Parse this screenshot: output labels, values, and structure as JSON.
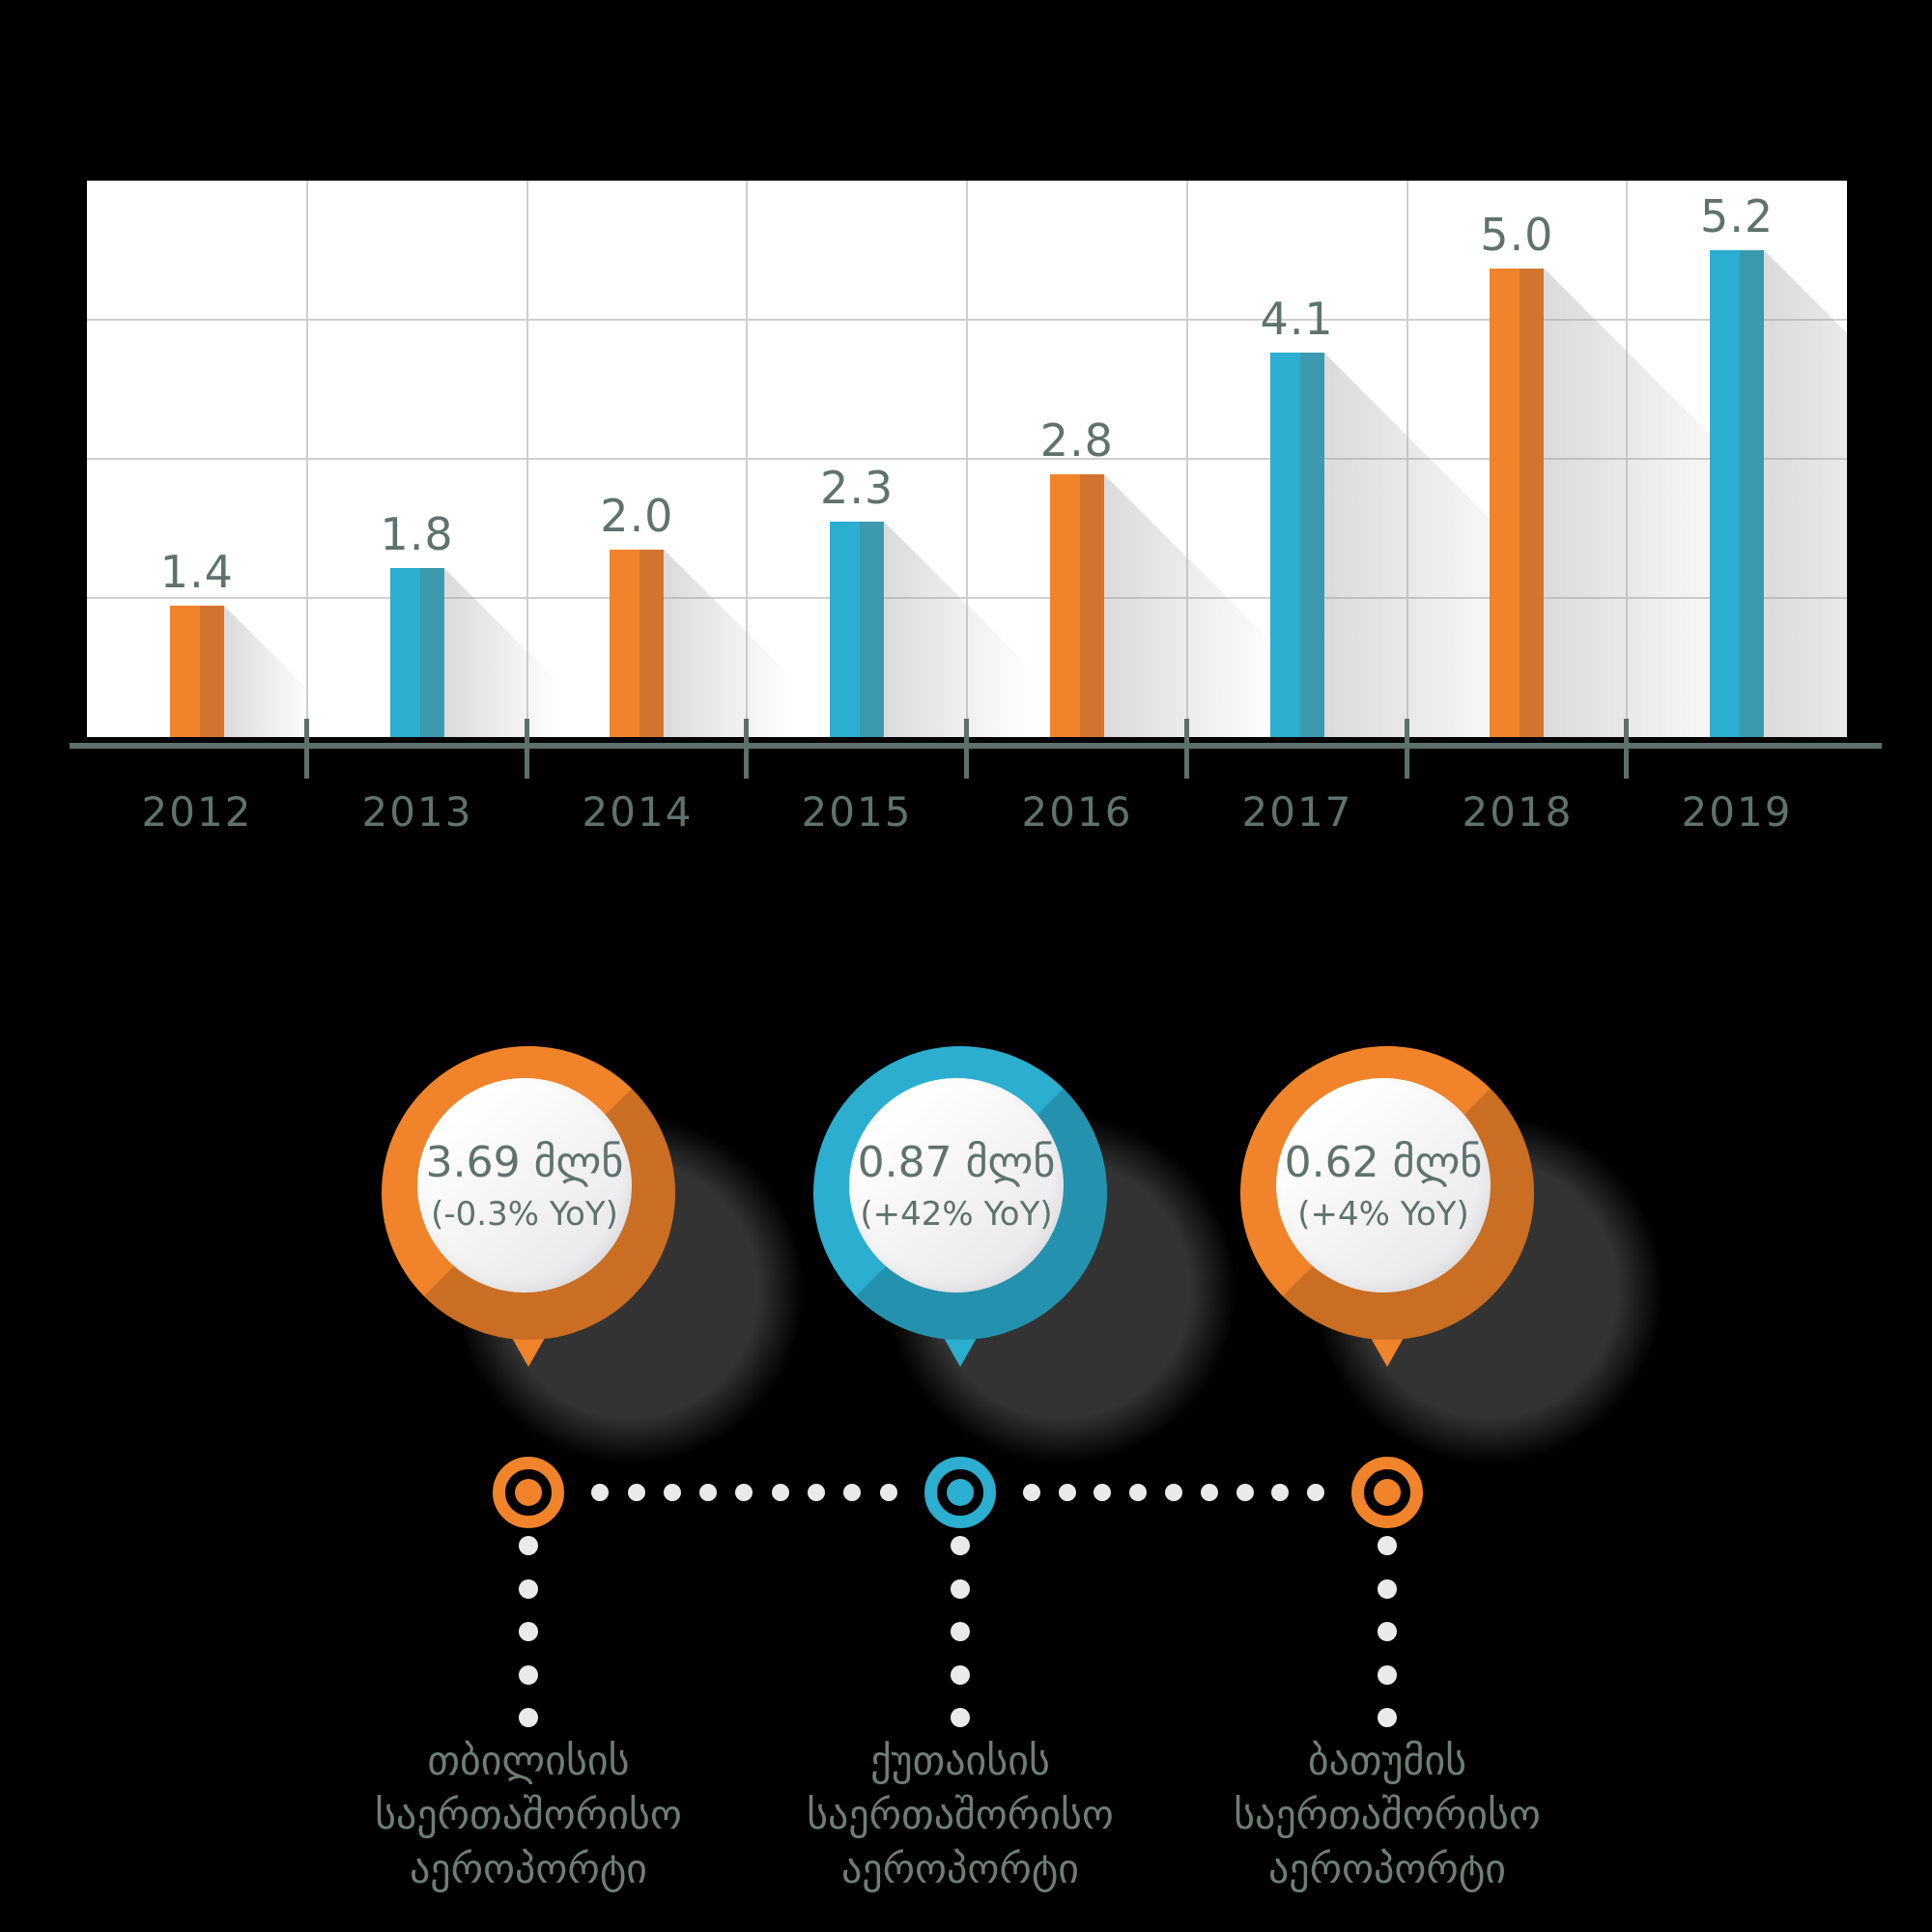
{
  "background_color": "#000000",
  "chart_data": {
    "type": "bar",
    "title": "",
    "categories": [
      "2012",
      "2013",
      "2014",
      "2015",
      "2016",
      "2017",
      "2018",
      "2019"
    ],
    "values": [
      1.4,
      1.8,
      2.0,
      2.3,
      2.8,
      4.1,
      5.0,
      5.2
    ],
    "value_labels": [
      "1.4",
      "1.8",
      "2.0",
      "2.3",
      "2.8",
      "4.1",
      "5.0",
      "5.2"
    ],
    "bar_colors": [
      "orange",
      "blue",
      "orange",
      "blue",
      "orange",
      "blue",
      "orange",
      "blue"
    ],
    "xlabel": "",
    "ylabel": "",
    "ylim": [
      0,
      5.9
    ],
    "grid": true,
    "y_axis_labels_visible": false,
    "legend_position": "none"
  },
  "pins": [
    {
      "value": "3.69 მლნ",
      "yoy": "(-0.3% YoY)",
      "color": "orange"
    },
    {
      "value": "0.87 მლნ",
      "yoy": "(+42% YoY)",
      "color": "blue"
    },
    {
      "value": "0.62 მლნ",
      "yoy": "(+4% YoY)",
      "color": "orange"
    }
  ],
  "airports": [
    {
      "marker_color": "orange",
      "lines": [
        "თბილისის",
        "საერთაშორისო",
        "აეროპორტი"
      ]
    },
    {
      "marker_color": "blue",
      "lines": [
        "ქუთაისის",
        "საერთაშორისო",
        "აეროპორტი"
      ]
    },
    {
      "marker_color": "orange",
      "lines": [
        "ბათუმის",
        "საერთაშორისო",
        "აეროპორტი"
      ]
    }
  ],
  "colors": {
    "orange": "#F1832A",
    "orange_dark": "#D2742F",
    "blue": "#2BAECF",
    "blue_dark": "#3D9AAE",
    "value_text": "#5F736E",
    "axis": "#5D706C",
    "grid_line": "#CFCFCF",
    "label_text": "#6D7E76",
    "dot": "#EAEAEA",
    "plot_bg": "#FFFFFF"
  }
}
